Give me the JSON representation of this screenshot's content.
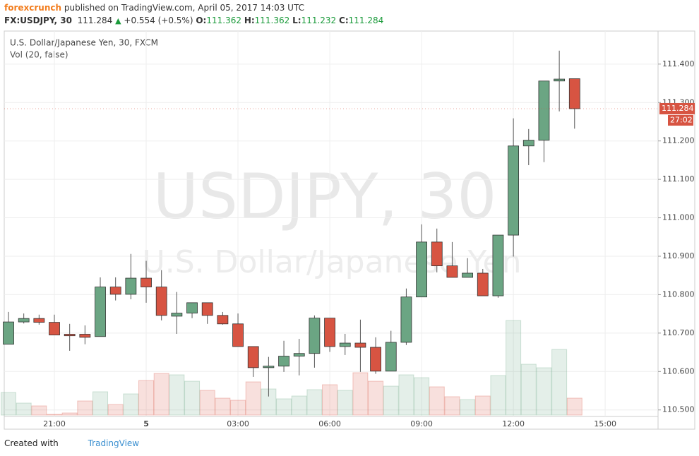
{
  "header": {
    "publisher": "forexcrunch",
    "published": "published on TradingView.com, April 05, 2017 14:03 UTC",
    "symbol": "FX:USDJPY, 30",
    "price": "111.284",
    "arrow": "▲",
    "change": "+0.554 (+0.5%)",
    "o_label": "O:",
    "o": "111.362",
    "h_label": "H:",
    "h": "111.362",
    "l_label": "L:",
    "l": "111.232",
    "c_label": "C:",
    "c": "111.284"
  },
  "chart_data": {
    "type": "candlestick",
    "title": "U.S. Dollar/Japanese Yen, 30, FXCM",
    "subtitle": "Vol (20, false)",
    "watermark": [
      "USDJPY, 30",
      "U.S. Dollar/Japanese Yen"
    ],
    "categories": [
      null,
      null,
      null,
      "21:00",
      null,
      null,
      null,
      null,
      null,
      "5",
      null,
      null,
      null,
      null,
      null,
      "03:00",
      null,
      null,
      null,
      null,
      null,
      "06:00",
      null,
      null,
      null,
      null,
      null,
      "09:00",
      null,
      null,
      null,
      null,
      null,
      "12:00",
      null,
      null,
      null,
      null,
      null,
      "15:00"
    ],
    "open": [
      110.671,
      110.729,
      110.738,
      110.728,
      110.697,
      110.697,
      110.691,
      110.82,
      110.801,
      110.843,
      110.82,
      110.744,
      110.752,
      110.779,
      110.746,
      110.724,
      110.665,
      110.61,
      110.614,
      110.64,
      110.647,
      110.739,
      110.665,
      110.674,
      110.663,
      110.601,
      110.676,
      110.794,
      110.937,
      110.875,
      110.845,
      110.856,
      110.797,
      110.955,
      111.187,
      111.202,
      111.356,
      111.362,
      null,
      null
    ],
    "high": [
      110.755,
      110.751,
      110.748,
      110.748,
      110.724,
      110.72,
      110.845,
      110.845,
      110.906,
      110.888,
      110.864,
      110.807,
      110.779,
      110.779,
      110.755,
      110.751,
      110.665,
      110.638,
      110.68,
      110.685,
      110.746,
      110.739,
      110.698,
      110.735,
      110.689,
      110.706,
      110.816,
      110.983,
      110.972,
      110.937,
      110.895,
      110.867,
      110.955,
      111.259,
      111.231,
      111.356,
      111.435,
      111.362,
      null,
      null
    ],
    "low": [
      110.671,
      110.725,
      110.722,
      110.695,
      110.654,
      110.671,
      110.691,
      110.785,
      110.788,
      110.779,
      110.733,
      110.698,
      110.739,
      110.724,
      110.722,
      110.665,
      110.586,
      110.535,
      110.599,
      110.59,
      110.61,
      110.651,
      110.643,
      110.599,
      110.594,
      110.601,
      110.669,
      110.794,
      110.858,
      110.845,
      110.845,
      110.797,
      110.792,
      110.899,
      111.137,
      111.145,
      111.277,
      111.232,
      null,
      null
    ],
    "close": [
      110.729,
      110.738,
      110.728,
      110.695,
      110.693,
      110.689,
      110.82,
      110.801,
      110.843,
      110.82,
      110.746,
      110.752,
      110.779,
      110.746,
      110.724,
      110.665,
      110.61,
      110.614,
      110.64,
      110.647,
      110.739,
      110.665,
      110.674,
      110.663,
      110.601,
      110.676,
      110.794,
      110.937,
      110.875,
      110.845,
      110.856,
      110.797,
      110.955,
      111.187,
      111.202,
      111.356,
      111.361,
      111.284,
      null,
      null
    ],
    "volume": [
      32,
      17,
      13,
      1,
      3,
      20,
      33,
      15,
      30,
      49,
      59,
      57,
      48,
      35,
      24,
      21,
      47,
      37,
      23,
      27,
      36,
      43,
      35,
      60,
      48,
      41,
      57,
      53,
      40,
      26,
      22,
      27,
      56,
      134,
      72,
      67,
      93,
      24,
      null,
      null
    ],
    "up_color": "#6ba583",
    "down_color": "#d75442",
    "ylim": [
      110.483,
      111.486
    ],
    "yticks": [
      {
        "value": 110.5,
        "label": "110.500"
      },
      {
        "value": 110.6,
        "label": "110.600"
      },
      {
        "value": 110.7,
        "label": "110.700"
      },
      {
        "value": 110.8,
        "label": "110.800"
      },
      {
        "value": 110.9,
        "label": "110.900"
      },
      {
        "value": 111.0,
        "label": "111.000"
      },
      {
        "value": 111.1,
        "label": "111.100"
      },
      {
        "value": 111.2,
        "label": "111.200"
      },
      {
        "value": 111.3,
        "label": "111.300"
      },
      {
        "value": 111.4,
        "label": "111.400"
      }
    ],
    "grid": true,
    "last_price": {
      "value": 111.284,
      "label": "111.284"
    },
    "countdown": "27:02"
  },
  "footer": {
    "created": "Created with",
    "brand": "TradingView"
  }
}
